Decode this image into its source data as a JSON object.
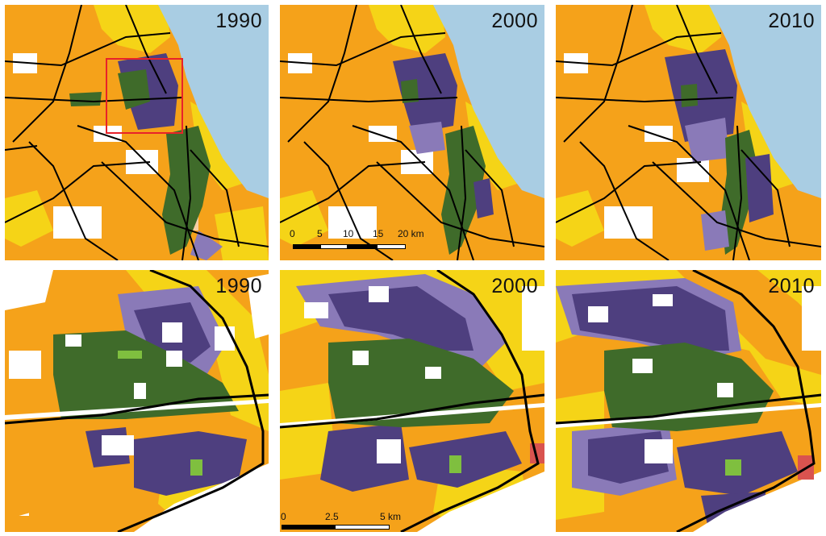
{
  "panels": [
    {
      "id": "top-1990",
      "year": "1990",
      "view": "overview"
    },
    {
      "id": "top-2000",
      "year": "2000",
      "view": "overview"
    },
    {
      "id": "top-2010",
      "year": "2010",
      "view": "overview"
    },
    {
      "id": "bottom-1990",
      "year": "1990",
      "view": "detail"
    },
    {
      "id": "bottom-2000",
      "year": "2000",
      "view": "detail"
    },
    {
      "id": "bottom-2010",
      "year": "2010",
      "view": "detail"
    }
  ],
  "scale_overview": {
    "labels": [
      "0",
      "5",
      "10",
      "15",
      "20 km"
    ]
  },
  "scale_detail": {
    "labels": [
      "0",
      "2.5",
      "5 km"
    ]
  },
  "colors": {
    "orange": "#f5a21a",
    "yellow": "#f5d417",
    "green": "#3f6b2a",
    "light_green": "#7fbf3f",
    "purple": "#4e3f7f",
    "light_purple": "#8a7ab8",
    "water": "#a9cde3",
    "road": "#000000",
    "peach": "#f6cfa5",
    "inset_box": "#e8222a"
  }
}
